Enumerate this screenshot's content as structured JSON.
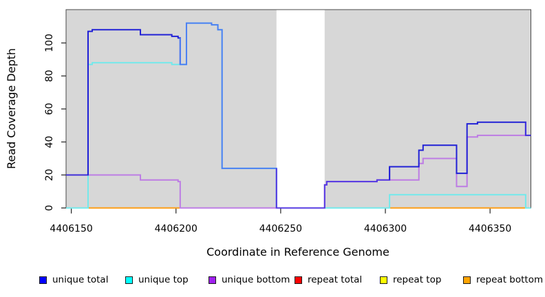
{
  "chart_data": {
    "type": "line",
    "style": "step-after",
    "title": "",
    "xlabel": "Coordinate in Reference Genome",
    "ylabel": "Read Coverage Depth",
    "xlim": [
      4406147.5,
      4406369.5
    ],
    "ylim": [
      0,
      120.2
    ],
    "grid": false,
    "plot_background": "#d7d7d7",
    "box_color": "#4a4a4a",
    "masked_region": {
      "from": 4406248,
      "to": 4406271,
      "color": "#ffffff"
    },
    "x_ticks": [
      {
        "value": 4406150,
        "label": "4406150"
      },
      {
        "value": 4406200,
        "label": "4406200"
      },
      {
        "value": 4406250,
        "label": "4406250"
      },
      {
        "value": 4406300,
        "label": "4406300"
      },
      {
        "value": 4406350,
        "label": "4406350"
      }
    ],
    "y_ticks": [
      {
        "value": 0,
        "label": "0"
      },
      {
        "value": 20,
        "label": "20"
      },
      {
        "value": 40,
        "label": "40"
      },
      {
        "value": 60,
        "label": "60"
      },
      {
        "value": 80,
        "label": "80"
      },
      {
        "value": 100,
        "label": "100"
      }
    ],
    "series": [
      {
        "name": "repeat total",
        "color": "#FF0000",
        "line_color": "#e23b3b",
        "steps": [
          [
            4406148,
            0
          ]
        ]
      },
      {
        "name": "repeat top",
        "color": "#FFFF00",
        "line_color": "#f5ef3d",
        "steps": [
          [
            4406148,
            0
          ]
        ]
      },
      {
        "name": "repeat bottom",
        "color": "#FFA500",
        "line_color": "#ff9d14",
        "steps": [
          [
            4406148,
            0
          ]
        ]
      },
      {
        "name": "unique top",
        "color": "#00FFFF",
        "line_color": "#72e9eb",
        "steps": [
          [
            4406148,
            0
          ],
          [
            4406158,
            87
          ],
          [
            4406160,
            88
          ],
          [
            4406198,
            87
          ],
          [
            4406205,
            112
          ],
          [
            4406217,
            111
          ],
          [
            4406220,
            108
          ],
          [
            4406222,
            24
          ],
          [
            4406248,
            0
          ],
          [
            4406302,
            8
          ],
          [
            4406367,
            0
          ]
        ]
      },
      {
        "name": "unique bottom",
        "color": "#A020F0",
        "line_color": "#bd7ce4",
        "steps": [
          [
            4406148,
            20
          ],
          [
            4406183,
            17
          ],
          [
            4406201,
            16
          ],
          [
            4406202,
            0
          ],
          [
            4406271,
            14
          ],
          [
            4406272,
            16
          ],
          [
            4406296,
            17
          ],
          [
            4406316,
            27
          ],
          [
            4406318,
            30
          ],
          [
            4406334,
            13
          ],
          [
            4406339,
            43
          ],
          [
            4406344,
            44
          ]
        ]
      },
      {
        "name": "unique total",
        "color": "#0000FF",
        "line_color": "#2121d6",
        "steps": [
          [
            4406148,
            20
          ],
          [
            4406158,
            107
          ],
          [
            4406160,
            108
          ],
          [
            4406183,
            105
          ],
          [
            4406198,
            104
          ],
          [
            4406201,
            103
          ],
          [
            4406202,
            87
          ],
          [
            4406205,
            112
          ],
          [
            4406217,
            111
          ],
          [
            4406220,
            108
          ],
          [
            4406222,
            24
          ],
          [
            4406248,
            0
          ],
          [
            4406271,
            14
          ],
          [
            4406272,
            16
          ],
          [
            4406296,
            17
          ],
          [
            4406302,
            25
          ],
          [
            4406316,
            35
          ],
          [
            4406318,
            38
          ],
          [
            4406334,
            21
          ],
          [
            4406339,
            51
          ],
          [
            4406344,
            52
          ],
          [
            4406367,
            44
          ]
        ],
        "color_segments": [
          {
            "from": 4406147.5,
            "to": 4406158,
            "color": "#3f2ed8"
          },
          {
            "from": 4406158,
            "to": 4406202,
            "color": "#2121d6"
          },
          {
            "from": 4406202,
            "to": 4406248,
            "color": "#4d7ff2"
          },
          {
            "from": 4406248,
            "to": 4406302,
            "color": "#5439e2"
          },
          {
            "from": 4406302,
            "to": 4406367,
            "color": "#2121d6"
          },
          {
            "from": 4406367,
            "to": 4406369.5,
            "color": "#4333dd"
          }
        ]
      }
    ],
    "legend": [
      {
        "label": "unique total",
        "color": "#0000FF"
      },
      {
        "label": "unique top",
        "color": "#00FFFF"
      },
      {
        "label": "unique bottom",
        "color": "#A020F0"
      },
      {
        "label": "repeat total",
        "color": "#FF0000"
      },
      {
        "label": "repeat top",
        "color": "#FFFF00"
      },
      {
        "label": "repeat bottom",
        "color": "#FFA500"
      }
    ]
  }
}
